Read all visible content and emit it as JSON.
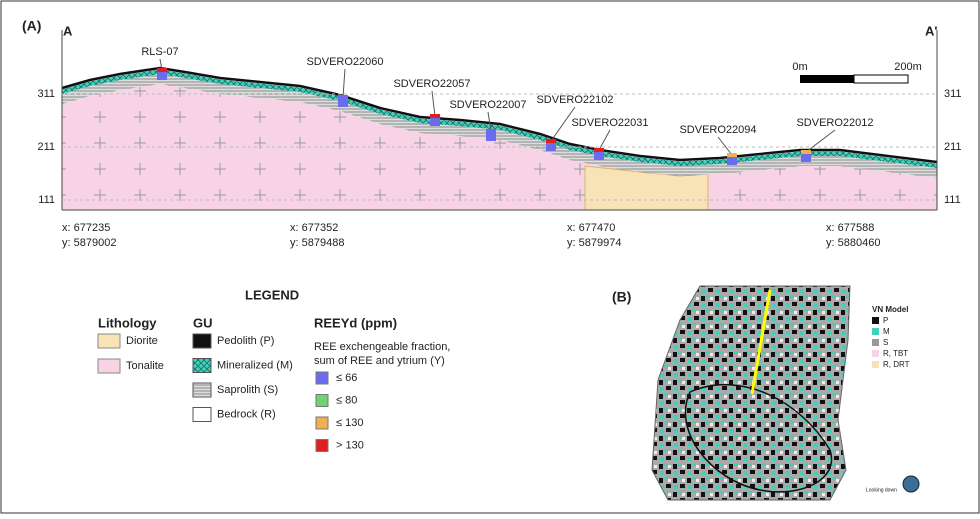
{
  "panel_a": {
    "label": "(A)",
    "start": "A",
    "end": "A'",
    "elevations_left": [
      "311",
      "211",
      "111"
    ],
    "elevations_right": [
      "311",
      "211",
      "111"
    ],
    "drillholes": [
      "RLS-07",
      "SDVERO22060",
      "SDVERO22057",
      "SDVERO22007",
      "SDVERO22102",
      "SDVERO22031",
      "SDVERO22094",
      "SDVERO22012"
    ],
    "scale": {
      "zero": "0m",
      "length": "200m"
    },
    "coordinates": [
      {
        "x": "x: 677235",
        "y": "y: 5879002"
      },
      {
        "x": "x: 677352",
        "y": "y: 5879488"
      },
      {
        "x": "x: 677470",
        "y": "y: 5879974"
      },
      {
        "x": "x: 677588",
        "y": "y: 5880460"
      }
    ]
  },
  "legend": {
    "title": "LEGEND",
    "lithology": {
      "title": "Lithology",
      "items": [
        "Diorite",
        "Tonalite"
      ]
    },
    "gu": {
      "title": "GU",
      "items": [
        "Pedolith (P)",
        "Mineralized (M)",
        "Saprolith (S)",
        "Bedrock (R)"
      ]
    },
    "reeyd": {
      "title": "REEYd (ppm)",
      "subtitle": [
        "REE exchengeable fraction,",
        "sum of REE and ytrium (Y)"
      ],
      "items": [
        "≤ 66",
        "≤ 80",
        "≤ 130",
        "> 130"
      ]
    }
  },
  "panel_b": {
    "label": "(B)",
    "legend_title": "VN Model",
    "items": [
      "P",
      "M",
      "S",
      "R, TBT",
      "R, DRT"
    ],
    "note": "Looking down"
  }
}
